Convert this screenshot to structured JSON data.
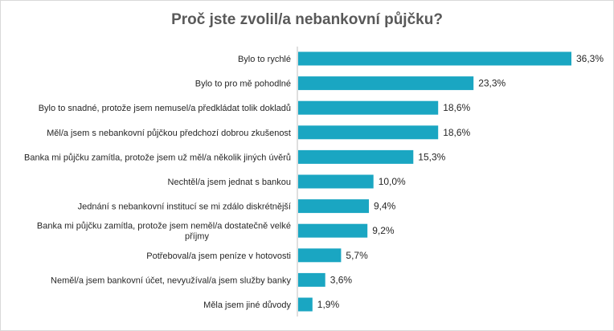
{
  "chart_data": {
    "type": "bar",
    "orientation": "horizontal",
    "title": "Proč jste zvolil/a nebankovní půjčku?",
    "xlabel": "",
    "ylabel": "",
    "bar_color": "#1AA6C2",
    "categories": [
      "Bylo to rychlé",
      "Bylo to pro mě pohodlné",
      "Bylo to snadné, protože jsem nemusel/a předkládat tolik dokladů",
      "Měl/a jsem s nebankovní půjčkou předchozí dobrou zkušenost",
      "Banka mi půjčku zamítla, protože jsem už měl/a několik jiných úvěrů",
      "Nechtěl/a jsem jednat s bankou",
      "Jednání s nebankovní institucí se mi zdálo diskrétnější",
      "Banka mi půjčku zamítla, protože jsem neměl/a dostatečně velké příjmy",
      "Potřeboval/a jsem peníze v hotovosti",
      "Neměl/a jsem bankovní účet, nevyužíval/a jsem služby banky",
      "Měla jsem jiné důvody"
    ],
    "category_lines": [
      [
        "Bylo to rychlé"
      ],
      [
        "Bylo to pro mě pohodlné"
      ],
      [
        "Bylo to snadné, protože jsem nemusel/a předkládat tolik dokladů"
      ],
      [
        "Měl/a jsem s nebankovní půjčkou předchozí dobrou zkušenost"
      ],
      [
        "Banka mi půjčku zamítla, protože jsem už měl/a několik jiných úvěrů"
      ],
      [
        "Nechtěl/a jsem jednat s bankou"
      ],
      [
        "Jednání s nebankovní institucí se mi zdálo diskrétnější"
      ],
      [
        "Banka mi půjčku zamítla, protože jsem neměl/a dostatečně velké",
        "příjmy"
      ],
      [
        "Potřeboval/a jsem peníze v hotovosti"
      ],
      [
        "Neměl/a jsem bankovní účet, nevyužíval/a jsem služby banky"
      ],
      [
        "Měla jsem jiné důvody"
      ]
    ],
    "values": [
      36.3,
      23.3,
      18.6,
      18.6,
      15.3,
      10.0,
      9.4,
      9.2,
      5.7,
      3.6,
      1.9
    ],
    "value_labels": [
      "36,3%",
      "23,3%",
      "18,6%",
      "18,6%",
      "15,3%",
      "10,0%",
      "9,4%",
      "9,2%",
      "5,7%",
      "3,6%",
      "1,9%"
    ],
    "xlim": [
      0,
      36.3
    ],
    "grid": false,
    "legend": "none"
  }
}
